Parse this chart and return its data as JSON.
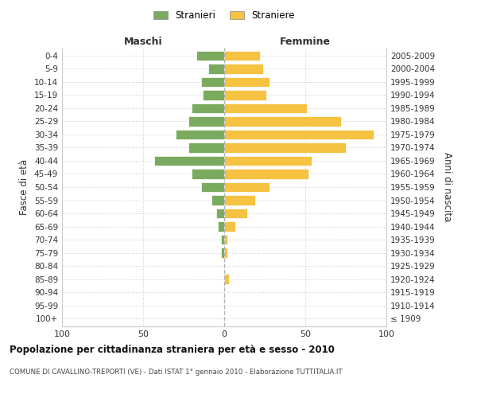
{
  "age_groups": [
    "100+",
    "95-99",
    "90-94",
    "85-89",
    "80-84",
    "75-79",
    "70-74",
    "65-69",
    "60-64",
    "55-59",
    "50-54",
    "45-49",
    "40-44",
    "35-39",
    "30-34",
    "25-29",
    "20-24",
    "15-19",
    "10-14",
    "5-9",
    "0-4"
  ],
  "birth_years": [
    "≤ 1909",
    "1910-1914",
    "1915-1919",
    "1920-1924",
    "1925-1929",
    "1930-1934",
    "1935-1939",
    "1940-1944",
    "1945-1949",
    "1950-1954",
    "1955-1959",
    "1960-1964",
    "1965-1969",
    "1970-1974",
    "1975-1979",
    "1980-1984",
    "1985-1989",
    "1990-1994",
    "1995-1999",
    "2000-2004",
    "2005-2009"
  ],
  "maschi": [
    0,
    0,
    0,
    0,
    0,
    2,
    2,
    4,
    5,
    8,
    14,
    20,
    43,
    22,
    30,
    22,
    20,
    13,
    14,
    10,
    17
  ],
  "femmine": [
    0,
    0,
    0,
    3,
    0,
    2,
    2,
    7,
    14,
    19,
    28,
    52,
    54,
    75,
    92,
    72,
    51,
    26,
    28,
    24,
    22
  ],
  "male_color": "#7aaa5e",
  "female_color": "#f5c242",
  "background_color": "#ffffff",
  "grid_color": "#cccccc",
  "bar_edge_color": "#ffffff",
  "xlim": 100,
  "title": "Popolazione per cittadinanza straniera per età e sesso - 2010",
  "subtitle": "COMUNE DI CAVALLINO-TREPORTI (VE) - Dati ISTAT 1° gennaio 2010 - Elaborazione TUTTITALIA.IT",
  "legend_male": "Stranieri",
  "legend_female": "Straniere",
  "xlabel_left": "Maschi",
  "xlabel_right": "Femmine",
  "ylabel_left": "Fasce di età",
  "ylabel_right": "Anni di nascita"
}
